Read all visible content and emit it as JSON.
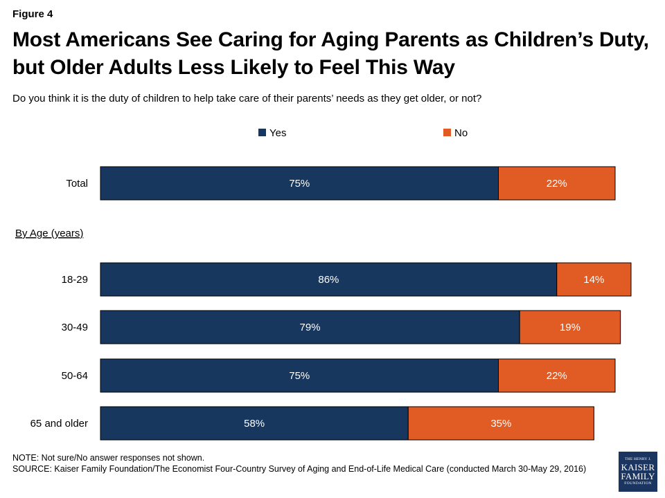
{
  "figure_label": "Figure 4",
  "title": "Most Americans See Caring for Aging Parents as Children’s Duty, but Older Adults Less Likely to Feel This Way",
  "subtitle": "Do you think it is the duty of children to help take care of their parents’ needs as they get older, or not?",
  "notes": {
    "note": "NOTE: Not sure/No answer responses not shown.",
    "source": "SOURCE: Kaiser Family Foundation/The Economist Four-Country Survey of Aging and End-of-Life Medical Care (conducted March 30-May 29, 2016)"
  },
  "logo": {
    "line1": "THE HENRY J.",
    "line2": "KAISER",
    "line3": "FAMILY",
    "line4": "FOUNDATION"
  },
  "colors": {
    "yes": "#17375e",
    "no": "#e05c24"
  },
  "chart_data": {
    "type": "bar",
    "orientation": "horizontal",
    "stacked": true,
    "legend_position": "top",
    "group_label": "By Age (years)",
    "categories": [
      "Total",
      "18-29",
      "30-49",
      "50-64",
      "65 and older"
    ],
    "series": [
      {
        "name": "Yes",
        "values": [
          75,
          86,
          79,
          75,
          58
        ]
      },
      {
        "name": "No",
        "values": [
          22,
          14,
          19,
          22,
          35
        ]
      }
    ],
    "data_labels": [
      [
        "75%",
        "86%",
        "79%",
        "75%",
        "58%"
      ],
      [
        "22%",
        "14%",
        "19%",
        "22%",
        "35%"
      ]
    ],
    "xlim": [
      0,
      100
    ]
  }
}
